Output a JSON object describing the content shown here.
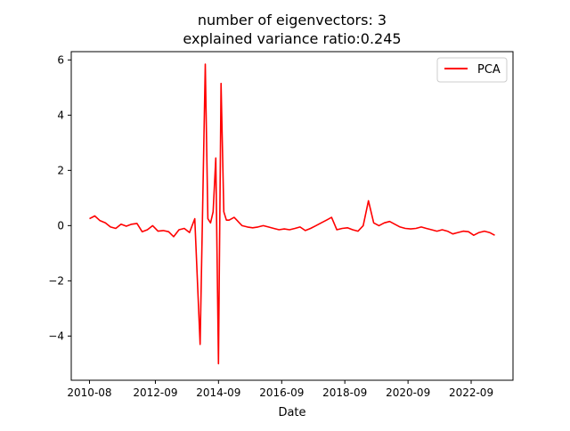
{
  "chart_data": {
    "type": "line",
    "title_line1": "number of eigenvectors: 3",
    "title_line2": "explained variance ratio:0.245",
    "xlabel": "Date",
    "ylabel": "",
    "x_ticks": [
      "2010-08",
      "2012-09",
      "2014-09",
      "2016-09",
      "2018-09",
      "2020-09",
      "2022-09"
    ],
    "y_ticks": [
      "−4",
      "−2",
      "0",
      "2",
      "4",
      "6"
    ],
    "ylim": [
      -5.6,
      6.3
    ],
    "legend_position": "top-right",
    "grid": false,
    "series": [
      {
        "name": "PCA",
        "color": "#ff0000",
        "x": [
          "2010-08",
          "2010-10",
          "2010-12",
          "2011-02",
          "2011-04",
          "2011-06",
          "2011-08",
          "2011-10",
          "2011-12",
          "2012-02",
          "2012-04",
          "2012-06",
          "2012-08",
          "2012-10",
          "2012-12",
          "2013-02",
          "2013-04",
          "2013-06",
          "2013-08",
          "2013-10",
          "2013-12",
          "2014-02",
          "2014-04",
          "2014-05",
          "2014-06",
          "2014-07",
          "2014-08",
          "2014-09",
          "2014-10",
          "2014-11",
          "2014-12",
          "2015-01",
          "2015-02",
          "2015-03",
          "2015-04",
          "2015-05",
          "2015-06",
          "2015-08",
          "2015-10",
          "2015-12",
          "2016-02",
          "2016-04",
          "2016-06",
          "2016-08",
          "2016-10",
          "2016-12",
          "2017-02",
          "2017-04",
          "2017-06",
          "2017-08",
          "2017-10",
          "2017-12",
          "2018-02",
          "2018-04",
          "2018-06",
          "2018-08",
          "2018-10",
          "2018-12",
          "2019-02",
          "2019-04",
          "2019-06",
          "2019-08",
          "2019-10",
          "2019-12",
          "2020-02",
          "2020-04",
          "2020-06",
          "2020-08",
          "2020-10",
          "2020-12",
          "2021-02",
          "2021-04",
          "2021-06",
          "2021-08",
          "2021-10",
          "2021-12",
          "2022-02",
          "2022-04",
          "2022-06",
          "2022-08",
          "2022-10",
          "2022-12",
          "2023-02",
          "2023-04",
          "2023-06"
        ],
        "y": [
          0.25,
          0.35,
          0.18,
          0.1,
          -0.05,
          -0.1,
          0.05,
          -0.02,
          0.05,
          0.08,
          -0.22,
          -0.15,
          0.0,
          -0.2,
          -0.18,
          -0.22,
          -0.4,
          -0.15,
          -0.1,
          -0.25,
          0.25,
          -4.3,
          5.85,
          0.25,
          0.1,
          0.5,
          2.45,
          -5.0,
          5.15,
          0.5,
          0.2,
          0.2,
          0.25,
          0.3,
          0.2,
          0.1,
          0.0,
          -0.05,
          -0.08,
          -0.05,
          0.0,
          -0.05,
          -0.1,
          -0.15,
          -0.12,
          -0.15,
          -0.1,
          -0.05,
          -0.18,
          -0.1,
          0.0,
          0.1,
          0.2,
          0.3,
          -0.15,
          -0.1,
          -0.08,
          -0.15,
          -0.2,
          0.0,
          0.9,
          0.1,
          0.0,
          0.1,
          0.15,
          0.05,
          -0.05,
          -0.1,
          -0.12,
          -0.1,
          -0.05,
          -0.1,
          -0.15,
          -0.2,
          -0.15,
          -0.2,
          -0.3,
          -0.25,
          -0.2,
          -0.22,
          -0.35,
          -0.25,
          -0.2,
          -0.25,
          -0.35
        ]
      }
    ]
  }
}
